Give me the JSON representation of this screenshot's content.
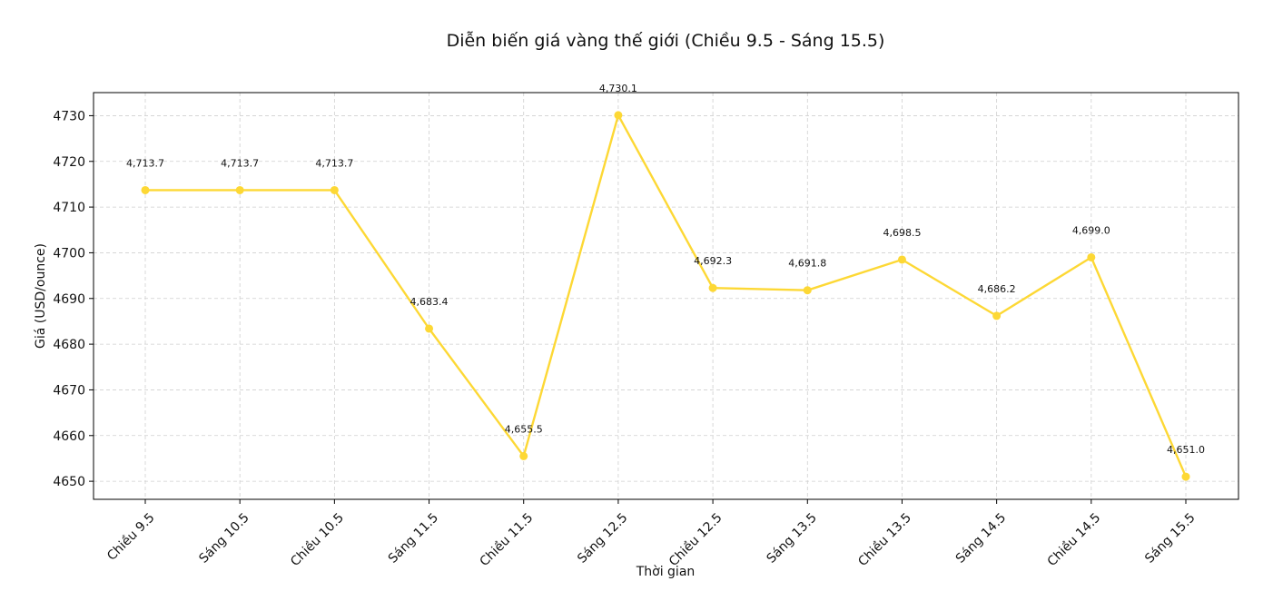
{
  "chart_data": {
    "type": "line",
    "title": "Diễn biến giá vàng thế giới (Chiều 9.5 - Sáng 15.5)",
    "xlabel": "Thời gian",
    "ylabel": "Giá (USD/ounce)",
    "categories": [
      "Chiều 9.5",
      "Sáng 10.5",
      "Chiều 10.5",
      "Sáng 11.5",
      "Chiều 11.5",
      "Sáng 12.5",
      "Chiều 12.5",
      "Sáng 13.5",
      "Chiều 13.5",
      "Sáng 14.5",
      "Chiều 14.5",
      "Sáng 15.5"
    ],
    "series": [
      {
        "values": [
          4713.7,
          4713.7,
          4713.7,
          4683.4,
          4655.5,
          4730.1,
          4692.3,
          4691.8,
          4698.5,
          4686.2,
          4699.0,
          4651.0
        ],
        "color": "#FDD835"
      }
    ],
    "data_labels": [
      "4,713.7",
      "4,713.7",
      "4,713.7",
      "4,683.4",
      "4,655.5",
      "4,730.1",
      "4,692.3",
      "4,691.8",
      "4,698.5",
      "4,686.2",
      "4,699.0",
      "4,651.0"
    ],
    "yticks": [
      "4650",
      "4660",
      "4670",
      "4680",
      "4690",
      "4700",
      "4710",
      "4720",
      "4730"
    ],
    "ylim": [
      4646.05,
      4735.05
    ],
    "grid": true,
    "grid_style": "dashed",
    "legend": false,
    "marker": "circle"
  }
}
